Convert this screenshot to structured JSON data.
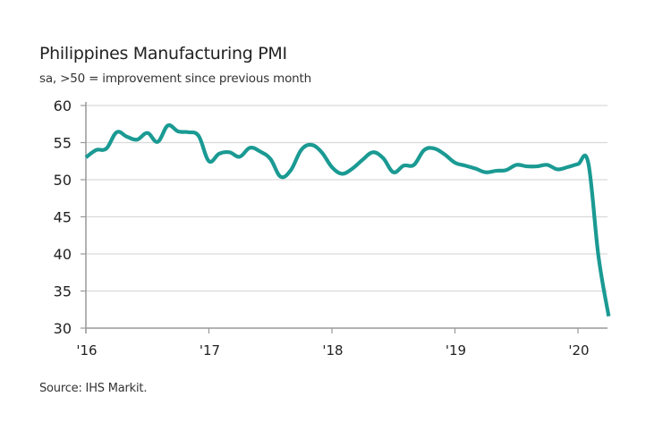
{
  "chart_data": {
    "type": "line",
    "title": "Philippines Manufacturing PMI",
    "subtitle": "sa, >50 = improvement since previous month",
    "source": "Source: IHS Markit.",
    "xlabel": "",
    "ylabel": "",
    "ylim": [
      30,
      60
    ],
    "yticks": [
      30,
      35,
      40,
      45,
      50,
      55,
      60
    ],
    "ytick_labels": [
      "30",
      "35",
      "40",
      "45",
      "50",
      "55",
      "60"
    ],
    "xticks": [
      "2016-01",
      "2017-01",
      "2018-01",
      "2019-01",
      "2020-01"
    ],
    "xtick_labels": [
      "'16",
      "'17",
      "'18",
      "'19",
      "'20"
    ],
    "xlim": [
      "2016-01",
      "2020-04"
    ],
    "grid": "horizontal",
    "legend": "none",
    "line_color": "#1a9a93",
    "series": [
      {
        "name": "Philippines Manufacturing PMI",
        "x": [
          "2016-01",
          "2016-02",
          "2016-03",
          "2016-04",
          "2016-05",
          "2016-06",
          "2016-07",
          "2016-08",
          "2016-09",
          "2016-10",
          "2016-11",
          "2016-12",
          "2017-01",
          "2017-02",
          "2017-03",
          "2017-04",
          "2017-05",
          "2017-06",
          "2017-07",
          "2017-08",
          "2017-09",
          "2017-10",
          "2017-11",
          "2017-12",
          "2018-01",
          "2018-02",
          "2018-03",
          "2018-04",
          "2018-05",
          "2018-06",
          "2018-07",
          "2018-08",
          "2018-09",
          "2018-10",
          "2018-11",
          "2018-12",
          "2019-01",
          "2019-02",
          "2019-03",
          "2019-04",
          "2019-05",
          "2019-06",
          "2019-07",
          "2019-08",
          "2019-09",
          "2019-10",
          "2019-11",
          "2019-12",
          "2020-01",
          "2020-02",
          "2020-03",
          "2020-04"
        ],
        "values": [
          53.0,
          54.0,
          54.2,
          56.4,
          55.8,
          55.4,
          56.3,
          55.1,
          57.3,
          56.5,
          56.4,
          55.9,
          52.5,
          53.5,
          53.7,
          53.1,
          54.3,
          53.8,
          52.8,
          50.4,
          51.3,
          54.0,
          54.7,
          53.7,
          51.7,
          50.8,
          51.5,
          52.7,
          53.7,
          52.9,
          51.0,
          51.9,
          52.0,
          54.0,
          54.2,
          53.4,
          52.3,
          51.9,
          51.5,
          51.0,
          51.2,
          51.3,
          52.0,
          51.8,
          51.8,
          52.0,
          51.4,
          51.7,
          52.1,
          52.3,
          39.7,
          31.6
        ]
      }
    ]
  }
}
